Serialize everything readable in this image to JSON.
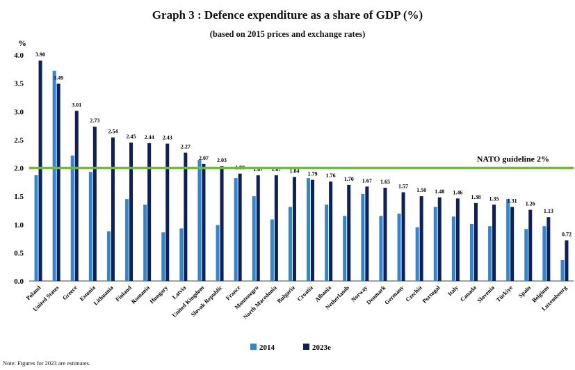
{
  "chart_data": {
    "type": "bar",
    "title": "Graph 3 : Defence expenditure as a share of GDP (%)",
    "subtitle": "(based on 2015 prices and exchange rates)",
    "ylabel": "%",
    "ylim": [
      0,
      4.0
    ],
    "yticks": [
      "0.0",
      "0.5",
      "1.0",
      "1.5",
      "2.0",
      "2.5",
      "3.0",
      "3.5",
      "4.0"
    ],
    "grid": false,
    "legend_position": "bottom",
    "categories": [
      "Poland",
      "United States",
      "Greece",
      "Estonia",
      "Lithuania",
      "Finland",
      "Romania",
      "Hungary",
      "Latvia",
      "United Kingdom",
      "Slovak Republic",
      "France",
      "Montenegro",
      "North Macedonia",
      "Bulgaria",
      "Croatia",
      "Albania",
      "Netherlands",
      "Norway",
      "Denmark",
      "Germany",
      "Czechia",
      "Portugal",
      "Italy",
      "Canada",
      "Slovenia",
      "Türkiye",
      "Spain",
      "Belgium",
      "Luxembourg"
    ],
    "series": [
      {
        "name": "2014",
        "color": "#2e86d6",
        "values": [
          1.87,
          3.72,
          2.22,
          1.93,
          0.88,
          1.45,
          1.35,
          0.86,
          0.93,
          2.14,
          0.99,
          1.82,
          1.5,
          1.09,
          1.31,
          1.82,
          1.35,
          1.15,
          1.54,
          1.15,
          1.19,
          0.95,
          1.31,
          1.14,
          1.01,
          0.97,
          1.45,
          0.92,
          0.97,
          0.37
        ]
      },
      {
        "name": "2023e",
        "color": "#0d1f5c",
        "values": [
          3.9,
          3.49,
          3.01,
          2.73,
          2.54,
          2.45,
          2.44,
          2.43,
          2.27,
          2.07,
          2.03,
          1.9,
          1.87,
          1.87,
          1.84,
          1.79,
          1.76,
          1.7,
          1.67,
          1.65,
          1.57,
          1.5,
          1.48,
          1.46,
          1.38,
          1.35,
          1.31,
          1.26,
          1.13,
          0.72
        ],
        "labels": [
          "3.90",
          "3.49",
          "3.01",
          "2.73",
          "2.54",
          "2.45",
          "2.44",
          "2.43",
          "2.27",
          "2.07",
          "2.03",
          "1.90",
          "1.87",
          "1.87",
          "1.84",
          "1.79",
          "1.76",
          "1.70",
          "1.67",
          "1.65",
          "1.57",
          "1.50",
          "1.48",
          "1.46",
          "1.38",
          "1.35",
          "1.31",
          "1.26",
          "1.13",
          "0.72"
        ]
      }
    ],
    "reference_line": {
      "value": 2.0,
      "label": "NATO guideline 2%",
      "color": "#6abf2a"
    }
  },
  "note": "Note: Figures for 2023 are estimates."
}
